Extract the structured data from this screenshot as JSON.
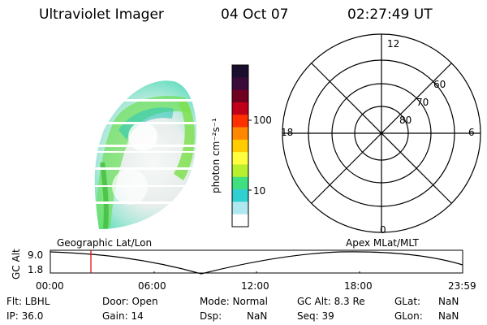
{
  "header": {
    "instrument": "Ultraviolet Imager",
    "date": "04 Oct 07",
    "time": "02:27:49 UT"
  },
  "colorbar": {
    "unit": "photon cm⁻²s⁻¹",
    "ticks": [
      "100",
      "10"
    ],
    "colors": [
      "#1a0d2e",
      "#3a0a3a",
      "#700020",
      "#c00018",
      "#ff3000",
      "#ff8800",
      "#ffcc00",
      "#ffff40",
      "#b8f030",
      "#40e080",
      "#30d0d0",
      "#b0e8f0",
      "#ffffff"
    ]
  },
  "polar": {
    "mlt_labels": {
      "top": "12",
      "left": "18",
      "right": "6",
      "bottom": "0"
    },
    "lat_labels": [
      "60",
      "70",
      "80"
    ]
  },
  "orbit": {
    "left_label": "Geographic Lat/Lon",
    "right_label": "Apex MLat/MLT",
    "ylabel": "GC Alt",
    "ymax": "9.0",
    "ymin": "1.8",
    "time_ticks": [
      "00:00",
      "06:00",
      "12:00",
      "18:00",
      "23:59"
    ],
    "marker_color": "#e00000"
  },
  "status": {
    "flt": "Flt: LBHL",
    "ip": "IP: 36.0",
    "door": "Door: Open",
    "gain": "Gain: 14",
    "mode": "Mode: Normal",
    "dsp_label": "Dsp:",
    "dsp_value": "NaN",
    "gcalt": "GC Alt: 8.3 Re",
    "seq": "Seq: 39",
    "glat_label": "GLat:",
    "glat_value": "NaN",
    "glon_label": "GLon:",
    "glon_value": "NaN"
  }
}
